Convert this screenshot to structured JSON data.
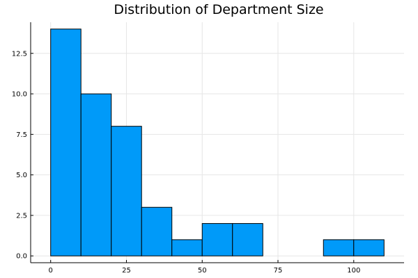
{
  "colors": {
    "bar_fill": "#009AF9",
    "bar_edge": "#000000",
    "grid": "#e6e6e6",
    "background": "#ffffff"
  },
  "chart_data": {
    "type": "bar",
    "title": "Distribution of Department Size",
    "xlabel": "",
    "ylabel": "",
    "bins": [
      {
        "start": 0,
        "end": 10,
        "count": 14
      },
      {
        "start": 10,
        "end": 20,
        "count": 10
      },
      {
        "start": 20,
        "end": 30,
        "count": 8
      },
      {
        "start": 30,
        "end": 40,
        "count": 3
      },
      {
        "start": 40,
        "end": 50,
        "count": 1
      },
      {
        "start": 50,
        "end": 60,
        "count": 2
      },
      {
        "start": 60,
        "end": 70,
        "count": 2
      },
      {
        "start": 70,
        "end": 80,
        "count": 0
      },
      {
        "start": 80,
        "end": 90,
        "count": 0
      },
      {
        "start": 90,
        "end": 100,
        "count": 1
      },
      {
        "start": 100,
        "end": 110,
        "count": 1
      }
    ],
    "xlim": [
      -6.6,
      116.6
    ],
    "ylim": [
      -0.42,
      14.42
    ],
    "xticks": [
      0,
      25,
      50,
      75,
      100
    ],
    "xtick_labels": [
      "0",
      "25",
      "50",
      "75",
      "100"
    ],
    "yticks": [
      0,
      2.5,
      5,
      7.5,
      10,
      12.5
    ],
    "ytick_labels": [
      "0.0",
      "2.5",
      "5.0",
      "7.5",
      "10.0",
      "12.5"
    ],
    "grid": true,
    "legend": "none"
  }
}
